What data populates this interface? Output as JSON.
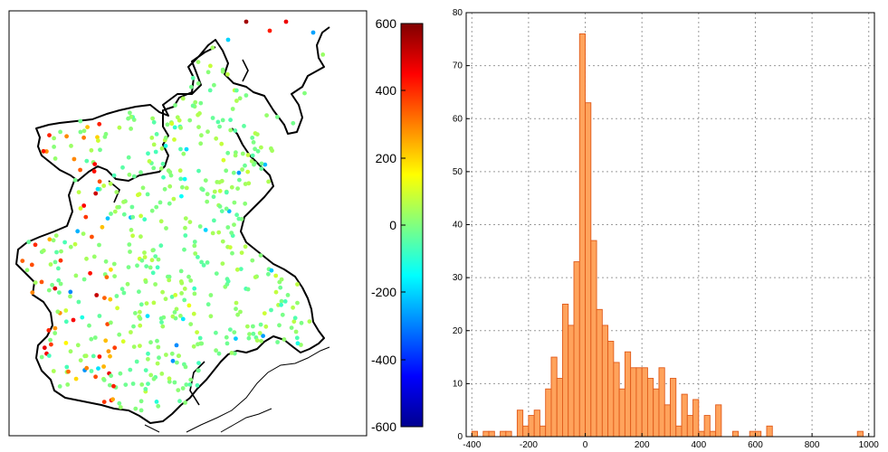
{
  "colors": {
    "bar_fill": "#ffa35c",
    "bar_edge": "#e05a1a",
    "grid": "#9a9a9a",
    "border": "#000000",
    "map_outline": "#000000"
  },
  "colorbar": {
    "ticks": [
      "600",
      "400",
      "200",
      "0",
      "-200",
      "-400",
      "-600"
    ],
    "range": [
      -600,
      600
    ],
    "colormap": "jet"
  },
  "chart_data": [
    {
      "type": "scatter",
      "description_kind": "map",
      "color_scale": [
        -600,
        600
      ],
      "note": "station points over regional map; point color encodes value"
    },
    {
      "type": "bar",
      "subtype": "histogram",
      "title": "",
      "xlabel": "",
      "ylabel": "",
      "xlim": [
        -420,
        1020
      ],
      "ylim": [
        0,
        80
      ],
      "x_ticks": [
        "-400",
        "-200",
        "0",
        "200",
        "400",
        "600",
        "800",
        "1000"
      ],
      "y_ticks": [
        "0",
        "10",
        "20",
        "30",
        "40",
        "50",
        "60",
        "70",
        "80"
      ],
      "bin_width": 20,
      "grid": true,
      "bin_centers": [
        -390,
        -350,
        -330,
        -290,
        -270,
        -230,
        -210,
        -190,
        -170,
        -150,
        -130,
        -110,
        -90,
        -70,
        -50,
        -30,
        -10,
        10,
        30,
        50,
        70,
        90,
        110,
        130,
        150,
        170,
        190,
        210,
        230,
        250,
        270,
        290,
        310,
        330,
        350,
        370,
        390,
        410,
        430,
        450,
        470,
        530,
        590,
        610,
        650,
        970
      ],
      "counts": [
        1,
        1,
        1,
        1,
        1,
        5,
        2,
        4,
        5,
        2,
        9,
        15,
        11,
        25,
        21,
        33,
        76,
        63,
        37,
        24,
        21,
        18,
        14,
        9,
        16,
        13,
        13,
        13,
        11,
        9,
        13,
        6,
        11,
        2,
        8,
        4,
        7,
        1,
        4,
        1,
        6,
        1,
        1,
        1,
        2,
        1
      ]
    }
  ]
}
